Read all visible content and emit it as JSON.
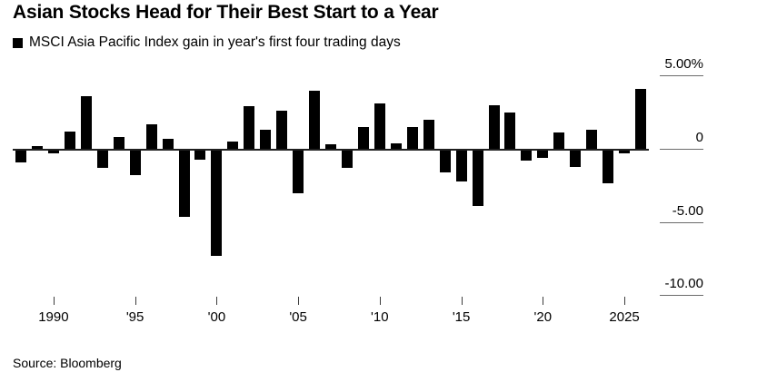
{
  "header": {
    "title": "Asian Stocks Head for Their Best Start to a Year",
    "legend": {
      "swatch_color": "#000000",
      "label": "MSCI Asia Pacific Index gain in year's first four trading days"
    }
  },
  "chart_data": {
    "type": "bar",
    "title": "Asian Stocks Head for Their Best Start to a Year",
    "series_name": "MSCI Asia Pacific Index gain in year's first four trading days",
    "unit": "%",
    "bar_color": "#000000",
    "legend_position": "top-left",
    "grid": "zero baseline across plot; short y-tick stubs in right margin; x tick marks below axis",
    "ylim": [
      -10.5,
      5.5
    ],
    "x": [
      1988,
      1989,
      1990,
      1991,
      1992,
      1993,
      1994,
      1995,
      1996,
      1997,
      1998,
      1999,
      2000,
      2001,
      2002,
      2003,
      2004,
      2005,
      2006,
      2007,
      2008,
      2009,
      2010,
      2011,
      2012,
      2013,
      2014,
      2015,
      2016,
      2017,
      2018,
      2019,
      2020,
      2021,
      2022,
      2023,
      2024,
      2025,
      2026
    ],
    "values": [
      -0.8,
      0.2,
      -0.2,
      1.2,
      3.6,
      -1.2,
      0.8,
      -1.7,
      1.7,
      0.7,
      -4.5,
      -0.6,
      -7.2,
      0.5,
      2.9,
      1.3,
      2.6,
      -2.9,
      4.0,
      0.3,
      -1.2,
      1.5,
      3.1,
      0.4,
      1.5,
      2.0,
      -1.5,
      -2.1,
      -3.8,
      3.0,
      2.5,
      -0.7,
      -0.5,
      1.1,
      -1.1,
      1.3,
      -2.2,
      -0.2,
      4.1
    ],
    "yticks": [
      {
        "y": 5,
        "label": "5.00%"
      },
      {
        "y": 0,
        "label": "0"
      },
      {
        "y": -5,
        "label": "-5.00"
      },
      {
        "y": -10,
        "label": "-10.00"
      }
    ],
    "xticks": [
      {
        "x": 1990,
        "label": "1990"
      },
      {
        "x": 1995,
        "label": "'95"
      },
      {
        "x": 2000,
        "label": "'00"
      },
      {
        "x": 2005,
        "label": "'05"
      },
      {
        "x": 2010,
        "label": "'10"
      },
      {
        "x": 2015,
        "label": "'15"
      },
      {
        "x": 2020,
        "label": "'20"
      },
      {
        "x": 2025,
        "label": "2025"
      }
    ]
  },
  "footer": {
    "source": "Source: Bloomberg"
  }
}
